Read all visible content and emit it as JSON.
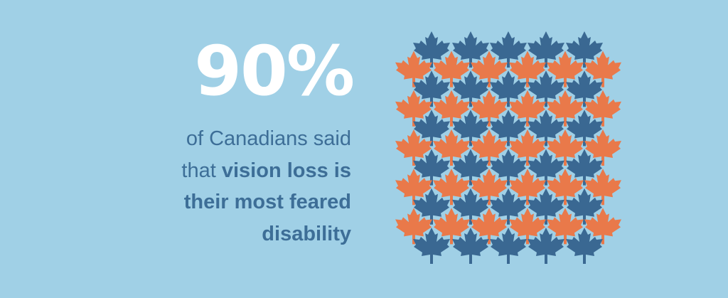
{
  "colors": {
    "background": "#a0d0e6",
    "headline": "#ffffff",
    "text": "#3d6e97",
    "leaf_blue": "#3a6892",
    "leaf_orange": "#e9794a"
  },
  "headline": {
    "value": "90%"
  },
  "caption": {
    "line1": "of Canadians said",
    "line2_prefix": "that ",
    "line2_bold": "vision loss is",
    "line3": "their most feared",
    "line4": "disability"
  },
  "pictogram": {
    "icon": "maple-leaf-icon",
    "rows": 11,
    "pattern": "alternating rows: blue rows of 5 leaves, orange rows of 6 leaves",
    "blue_count": 30,
    "orange_count": 30
  }
}
